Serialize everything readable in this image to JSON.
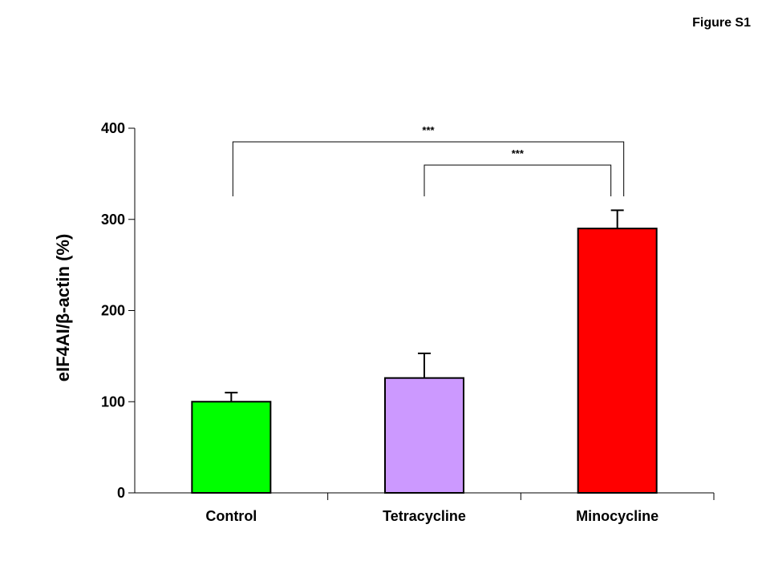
{
  "figure_label": "Figure S1",
  "chart_data": {
    "type": "bar",
    "categories": [
      "Control",
      "Tetracycline",
      "Minocycline"
    ],
    "values": [
      100,
      126,
      290
    ],
    "errors": [
      10,
      27,
      20
    ],
    "colors": [
      "#00ff00",
      "#cc99ff",
      "#ff0000"
    ],
    "ylabel": "eIF4AI/β-actin (%)",
    "xlabel": "",
    "ylim": [
      0,
      400
    ],
    "yticks": [
      0,
      100,
      200,
      300,
      400
    ],
    "grid": false,
    "significance": [
      {
        "from": 0,
        "to": 2,
        "label": "***"
      },
      {
        "from": 1,
        "to": 2,
        "label": "***"
      }
    ]
  }
}
